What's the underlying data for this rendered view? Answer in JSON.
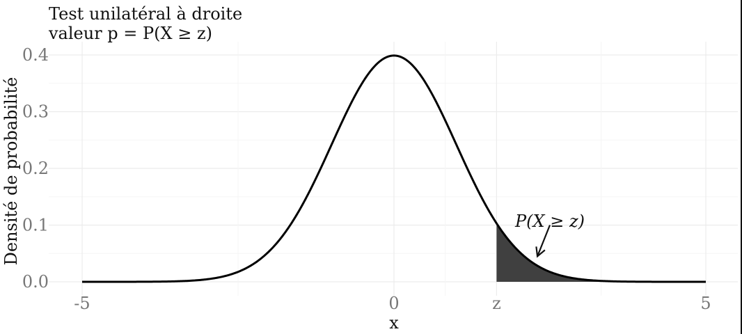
{
  "chart_data": {
    "type": "area",
    "title": "Test unilatéral à droite",
    "subtitle": "valeur p = P(X ≥ z)",
    "xlabel": "x",
    "ylabel": "Densité de probabilité",
    "xlim": [
      -5,
      5
    ],
    "ylim": [
      0,
      0.4
    ],
    "x_ticks": [
      {
        "value": -5,
        "label": "-5"
      },
      {
        "value": 0,
        "label": "0"
      },
      {
        "value": 1.645,
        "label": "z"
      },
      {
        "value": 5,
        "label": "5"
      }
    ],
    "y_ticks": [
      {
        "value": 0,
        "label": "0.0"
      },
      {
        "value": 0.1,
        "label": "0.1"
      },
      {
        "value": 0.2,
        "label": "0.2"
      },
      {
        "value": 0.3,
        "label": "0.3"
      },
      {
        "value": 0.4,
        "label": "0.4"
      }
    ],
    "curve": {
      "distribution": "standard normal",
      "mean": 0,
      "sd": 1,
      "x_range": [
        -5,
        5
      ],
      "peak": 0.399,
      "color": "#000000"
    },
    "shaded_region": {
      "from": 1.645,
      "to": 5,
      "color": "#404040"
    },
    "annotation": {
      "text": "P(X ≥ z)",
      "arrow_from": [
        2.5,
        0.1
      ],
      "arrow_to": [
        2.3,
        0.045
      ]
    },
    "grid": true,
    "legend": "none"
  }
}
